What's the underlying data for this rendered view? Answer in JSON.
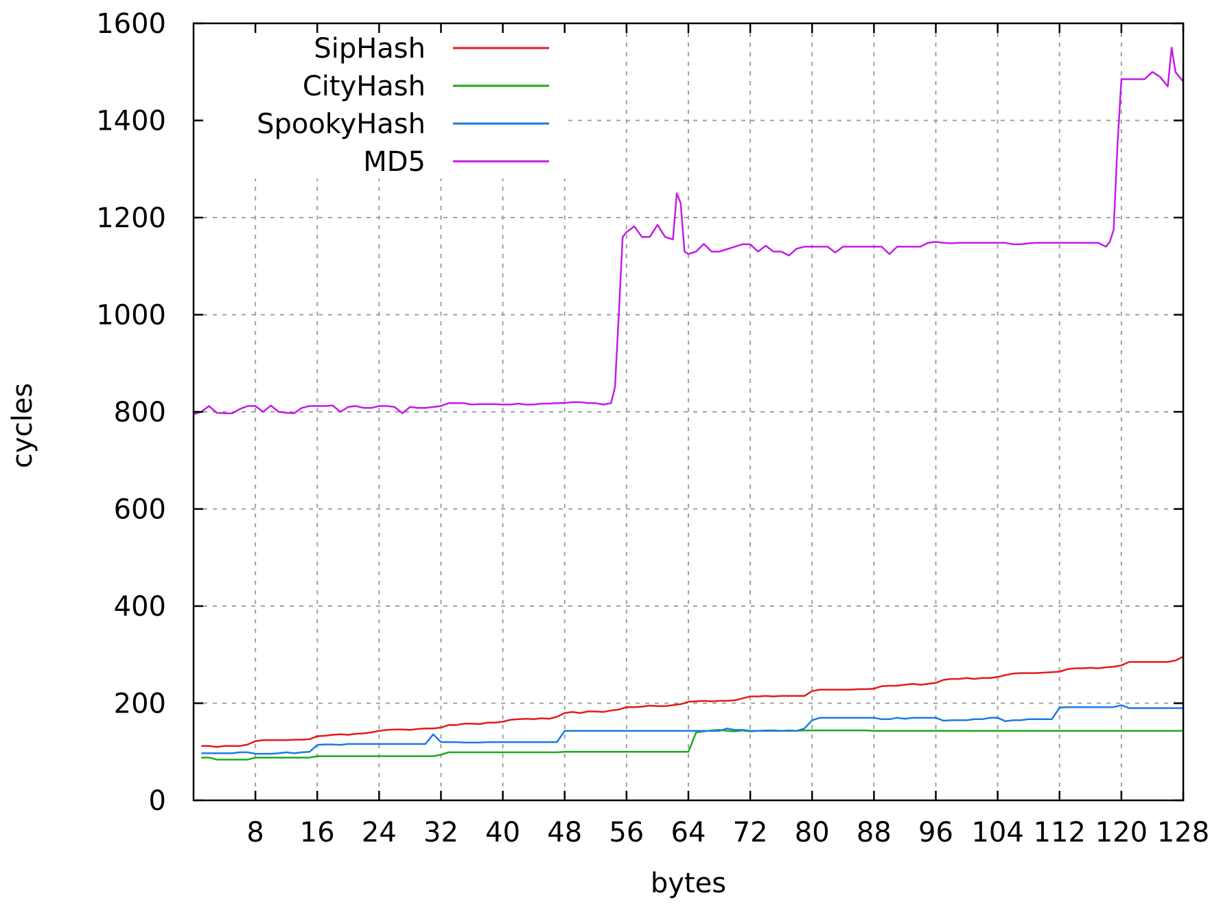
{
  "chart_data": {
    "type": "line",
    "title": "",
    "xlabel": "bytes",
    "ylabel": "cycles",
    "xlim": [
      0,
      128
    ],
    "ylim": [
      0,
      1600
    ],
    "xticks": [
      8,
      16,
      24,
      32,
      40,
      48,
      56,
      64,
      72,
      80,
      88,
      96,
      104,
      112,
      120,
      128
    ],
    "xtick_labels": [
      "8",
      "16",
      "24",
      "32",
      "40",
      "48",
      "56",
      "64",
      "72",
      "80",
      "88",
      "96",
      "104",
      "112",
      "120",
      "128"
    ],
    "yticks": [
      0,
      200,
      400,
      600,
      800,
      1000,
      1200,
      1400,
      1600
    ],
    "ytick_labels": [
      "0",
      "200",
      "400",
      "600",
      "800",
      "1000",
      "1200",
      "1400",
      "1600"
    ],
    "grid": true,
    "legend_position": "top-left",
    "series": [
      {
        "name": "SipHash",
        "color": "#e41a1c",
        "x": [
          1,
          2,
          3,
          4,
          5,
          6,
          7,
          8,
          9,
          10,
          11,
          12,
          13,
          14,
          15,
          16,
          17,
          18,
          19,
          20,
          21,
          22,
          23,
          24,
          25,
          26,
          27,
          28,
          29,
          30,
          31,
          32,
          33,
          34,
          35,
          36,
          37,
          38,
          39,
          40,
          41,
          42,
          43,
          44,
          45,
          46,
          47,
          48,
          49,
          50,
          51,
          52,
          53,
          54,
          55,
          56,
          57,
          58,
          59,
          60,
          61,
          62,
          63,
          64,
          65,
          66,
          67,
          68,
          69,
          70,
          71,
          72,
          73,
          74,
          75,
          76,
          77,
          78,
          79,
          80,
          81,
          82,
          83,
          84,
          85,
          86,
          87,
          88,
          89,
          90,
          91,
          92,
          93,
          94,
          95,
          96,
          97,
          98,
          99,
          100,
          101,
          102,
          103,
          104,
          105,
          106,
          107,
          108,
          109,
          110,
          111,
          112,
          113,
          114,
          115,
          116,
          117,
          118,
          119,
          120,
          121,
          122,
          123,
          124,
          125,
          126,
          127,
          128
        ],
        "y": [
          112,
          112,
          110,
          112,
          112,
          112,
          115,
          122,
          124,
          124,
          124,
          124,
          125,
          125,
          126,
          132,
          133,
          135,
          136,
          135,
          137,
          138,
          140,
          143,
          145,
          146,
          146,
          145,
          147,
          148,
          148,
          150,
          155,
          155,
          158,
          158,
          157,
          160,
          160,
          162,
          166,
          167,
          168,
          167,
          169,
          168,
          172,
          180,
          182,
          180,
          183,
          183,
          182,
          185,
          187,
          192,
          192,
          193,
          195,
          194,
          194,
          196,
          198,
          203,
          204,
          205,
          204,
          205,
          205,
          206,
          210,
          214,
          214,
          215,
          214,
          215,
          215,
          215,
          215,
          225,
          228,
          228,
          228,
          228,
          228,
          229,
          229,
          230,
          235,
          236,
          236,
          238,
          240,
          238,
          240,
          242,
          248,
          250,
          250,
          252,
          250,
          252,
          252,
          254,
          258,
          261,
          262,
          262,
          262,
          263,
          264,
          265,
          270,
          272,
          272,
          273,
          272,
          274,
          275,
          278,
          285,
          285,
          285,
          285,
          285,
          285,
          288,
          296
        ]
      },
      {
        "name": "CityHash",
        "color": "#1aab1a",
        "x": [
          1,
          2,
          3,
          4,
          5,
          6,
          7,
          8,
          9,
          10,
          11,
          12,
          13,
          14,
          15,
          16,
          17,
          18,
          19,
          20,
          21,
          22,
          23,
          24,
          25,
          26,
          27,
          28,
          29,
          30,
          31,
          32,
          33,
          34,
          35,
          36,
          37,
          38,
          39,
          40,
          41,
          42,
          43,
          44,
          45,
          46,
          47,
          48,
          49,
          50,
          51,
          52,
          53,
          54,
          55,
          56,
          57,
          58,
          59,
          60,
          61,
          62,
          63,
          64,
          65,
          66,
          67,
          68,
          69,
          70,
          71,
          72,
          73,
          74,
          75,
          76,
          77,
          78,
          79,
          80,
          81,
          82,
          83,
          84,
          85,
          86,
          87,
          88,
          89,
          90,
          91,
          92,
          93,
          94,
          95,
          96,
          97,
          98,
          99,
          100,
          101,
          102,
          103,
          104,
          105,
          106,
          107,
          108,
          109,
          110,
          111,
          112,
          113,
          114,
          115,
          116,
          117,
          118,
          119,
          120,
          121,
          122,
          123,
          124,
          125,
          126,
          127,
          128
        ],
        "y": [
          88,
          88,
          84,
          84,
          84,
          84,
          84,
          88,
          88,
          88,
          88,
          88,
          88,
          88,
          88,
          91,
          91,
          91,
          91,
          91,
          91,
          91,
          91,
          91,
          91,
          91,
          91,
          91,
          91,
          91,
          91,
          94,
          99,
          99,
          99,
          99,
          99,
          99,
          99,
          99,
          99,
          99,
          99,
          99,
          99,
          99,
          99,
          100,
          100,
          100,
          100,
          100,
          100,
          100,
          100,
          100,
          100,
          100,
          100,
          100,
          100,
          100,
          100,
          100,
          140,
          142,
          144,
          145,
          143,
          142,
          144,
          142,
          143,
          144,
          144,
          143,
          144,
          143,
          144,
          144,
          144,
          144,
          144,
          144,
          144,
          144,
          144,
          143,
          143,
          143,
          143,
          143,
          143,
          143,
          143,
          143,
          143,
          143,
          143,
          143,
          143,
          143,
          143,
          143,
          143,
          143,
          143,
          143,
          143,
          143,
          143,
          143,
          143,
          143,
          143,
          143,
          143,
          143,
          143,
          143,
          143,
          143,
          143,
          143,
          143,
          143,
          143,
          143
        ]
      },
      {
        "name": "SpookyHash",
        "color": "#1a7ae6",
        "x": [
          1,
          2,
          3,
          4,
          5,
          6,
          7,
          8,
          9,
          10,
          11,
          12,
          13,
          14,
          15,
          16,
          17,
          18,
          19,
          20,
          21,
          22,
          23,
          24,
          25,
          26,
          27,
          28,
          29,
          30,
          31,
          32,
          33,
          34,
          35,
          36,
          37,
          38,
          39,
          40,
          41,
          42,
          43,
          44,
          45,
          46,
          47,
          48,
          49,
          50,
          51,
          52,
          53,
          54,
          55,
          56,
          57,
          58,
          59,
          60,
          61,
          62,
          63,
          64,
          65,
          66,
          67,
          68,
          69,
          70,
          71,
          72,
          73,
          74,
          75,
          76,
          77,
          78,
          79,
          80,
          81,
          82,
          83,
          84,
          85,
          86,
          87,
          88,
          89,
          90,
          91,
          92,
          93,
          94,
          95,
          96,
          97,
          98,
          99,
          100,
          101,
          102,
          103,
          104,
          105,
          106,
          107,
          108,
          109,
          110,
          111,
          112,
          113,
          114,
          115,
          116,
          117,
          118,
          119,
          120,
          121,
          122,
          123,
          124,
          125,
          126,
          127,
          128
        ],
        "y": [
          97,
          97,
          97,
          97,
          97,
          99,
          99,
          96,
          96,
          96,
          97,
          99,
          97,
          99,
          100,
          114,
          115,
          115,
          114,
          116,
          116,
          116,
          116,
          116,
          116,
          116,
          116,
          116,
          116,
          116,
          136,
          120,
          120,
          120,
          119,
          119,
          119,
          120,
          120,
          120,
          120,
          120,
          120,
          120,
          120,
          120,
          120,
          143,
          143,
          143,
          143,
          143,
          143,
          143,
          143,
          143,
          143,
          143,
          143,
          143,
          143,
          143,
          143,
          143,
          143,
          143,
          143,
          143,
          148,
          145,
          145,
          143,
          143,
          143,
          143,
          143,
          143,
          143,
          148,
          165,
          170,
          170,
          170,
          170,
          170,
          170,
          170,
          170,
          167,
          167,
          170,
          168,
          170,
          170,
          170,
          170,
          164,
          165,
          165,
          165,
          167,
          167,
          170,
          170,
          163,
          165,
          165,
          167,
          167,
          167,
          167,
          191,
          192,
          192,
          192,
          192,
          192,
          192,
          192,
          196,
          190,
          190,
          190,
          190,
          190,
          190,
          190,
          190
        ]
      },
      {
        "name": "MD5",
        "color": "#c41ae6",
        "x": [
          0,
          1,
          2,
          3,
          4,
          5,
          6,
          7,
          8,
          9,
          10,
          11,
          12,
          13,
          14,
          15,
          16,
          17,
          18,
          19,
          20,
          21,
          22,
          23,
          24,
          25,
          26,
          27,
          28,
          29,
          30,
          31,
          32,
          33,
          34,
          35,
          36,
          37,
          38,
          39,
          40,
          41,
          42,
          43,
          44,
          45,
          46,
          47,
          48,
          49,
          50,
          51,
          52,
          53,
          54,
          54.5,
          55,
          55.5,
          56,
          57,
          58,
          59,
          60,
          61,
          62,
          62.5,
          63,
          63.5,
          64,
          65,
          66,
          67,
          68,
          69,
          70,
          71,
          72,
          73,
          74,
          75,
          76,
          77,
          78,
          79,
          80,
          81,
          82,
          83,
          84,
          85,
          86,
          87,
          88,
          89,
          90,
          91,
          92,
          93,
          94,
          95,
          96,
          97,
          98,
          99,
          100,
          101,
          102,
          103,
          104,
          105,
          106,
          107,
          108,
          109,
          110,
          111,
          112,
          113,
          114,
          115,
          116,
          117,
          118,
          118.5,
          119,
          119.5,
          120,
          121,
          122,
          123,
          124,
          125,
          126,
          126.5,
          127,
          128
        ],
        "y": [
          795,
          800,
          812,
          798,
          797,
          797,
          806,
          812,
          812,
          800,
          813,
          800,
          798,
          797,
          808,
          812,
          812,
          812,
          813,
          800,
          810,
          812,
          808,
          808,
          812,
          812,
          810,
          797,
          810,
          808,
          808,
          810,
          812,
          818,
          818,
          818,
          815,
          816,
          816,
          816,
          815,
          815,
          817,
          815,
          815,
          817,
          817,
          818,
          818,
          820,
          820,
          818,
          818,
          815,
          818,
          850,
          1000,
          1160,
          1170,
          1182,
          1160,
          1160,
          1185,
          1160,
          1155,
          1250,
          1230,
          1130,
          1125,
          1130,
          1146,
          1130,
          1130,
          1135,
          1140,
          1145,
          1145,
          1130,
          1142,
          1130,
          1130,
          1122,
          1136,
          1140,
          1140,
          1140,
          1140,
          1128,
          1140,
          1140,
          1140,
          1140,
          1140,
          1140,
          1125,
          1140,
          1140,
          1140,
          1140,
          1148,
          1150,
          1148,
          1147,
          1148,
          1148,
          1148,
          1148,
          1148,
          1148,
          1148,
          1145,
          1145,
          1147,
          1148,
          1148,
          1148,
          1148,
          1148,
          1148,
          1148,
          1148,
          1148,
          1140,
          1150,
          1175,
          1350,
          1485,
          1485,
          1485,
          1485,
          1500,
          1490,
          1470,
          1550,
          1500,
          1480
        ]
      }
    ]
  }
}
